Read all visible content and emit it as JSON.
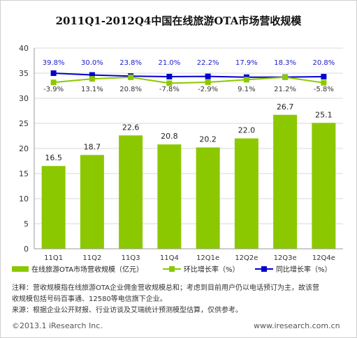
{
  "title": "2011Q1-2012Q4中国在线旅游OTA市场营收规模",
  "chart_data": {
    "type": "bar",
    "title": "2011Q1-2012Q4中国在线旅游OTA市场营收规模",
    "categories": [
      "11Q1",
      "11Q2",
      "11Q3",
      "11Q4",
      "12Q1e",
      "12Q2e",
      "12Q3e",
      "12Q4e"
    ],
    "ylim": [
      0,
      40
    ],
    "yticks": [
      0,
      5,
      10,
      15,
      20,
      25,
      30,
      35,
      40
    ],
    "grid": true,
    "legend_position": "bottom",
    "series": [
      {
        "name": "在线旅游OTA市场营收规模（亿元）",
        "type": "bar",
        "color": "#8cc800",
        "values": [
          16.5,
          18.7,
          22.6,
          20.8,
          20.2,
          22.0,
          26.7,
          25.1
        ],
        "labels": [
          "16.5",
          "18.7",
          "22.6",
          "20.8",
          "20.2",
          "22.0",
          "26.7",
          "25.1"
        ]
      },
      {
        "name": "环比增长率（%）",
        "type": "line",
        "color": "#8cc800",
        "values": [
          -3.9,
          13.1,
          20.8,
          -7.8,
          -2.9,
          9.1,
          21.2,
          -5.8
        ],
        "labels": [
          "-3.9%",
          "13.1%",
          "20.8%",
          "-7.8%",
          "-2.9%",
          "9.1%",
          "21.2%",
          "-5.8%"
        ]
      },
      {
        "name": "同比增长率（%）",
        "type": "line",
        "color": "#0000cc",
        "values": [
          39.8,
          30.0,
          23.8,
          21.0,
          22.2,
          17.9,
          18.3,
          20.8
        ],
        "labels": [
          "39.8%",
          "30.0%",
          "23.8%",
          "21.0%",
          "22.2%",
          "17.9%",
          "18.3%",
          "20.8%"
        ]
      }
    ]
  },
  "notes": [
    "注释：营收规模指在线旅游OTA企业佣金营收规模总和；考虑到目前用户仍以电话预订为主，故该营",
    "收规模包括号码百事通、12580等电信旗下企业。",
    "来源：根据企业公开财报、行业访谈及艾瑞统计预测模型估算，仅供参考。"
  ],
  "footer": {
    "copyright": "©2013.1 iResearch Inc.",
    "website": "www.iresearch.com.cn"
  }
}
